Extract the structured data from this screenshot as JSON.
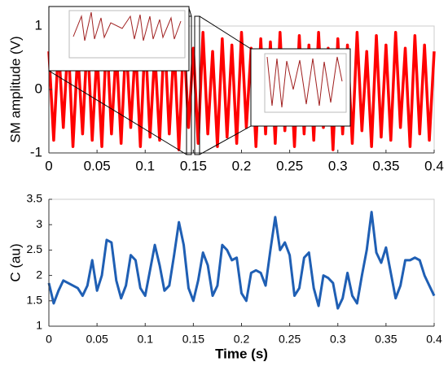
{
  "chart_data": [
    {
      "type": "line",
      "ylabel": "SM amplitude (V)",
      "color": "#ff0000",
      "x": [
        0,
        0.005,
        0.01,
        0.015,
        0.02,
        0.025,
        0.03,
        0.035,
        0.04,
        0.045,
        0.05,
        0.055,
        0.06,
        0.065,
        0.07,
        0.075,
        0.08,
        0.085,
        0.09,
        0.095,
        0.1,
        0.105,
        0.11,
        0.115,
        0.12,
        0.125,
        0.13,
        0.135,
        0.14,
        0.145,
        0.15,
        0.155,
        0.16,
        0.165,
        0.17,
        0.175,
        0.18,
        0.185,
        0.19,
        0.195,
        0.2,
        0.205,
        0.21,
        0.215,
        0.22,
        0.225,
        0.23,
        0.235,
        0.24,
        0.245,
        0.25,
        0.255,
        0.26,
        0.265,
        0.27,
        0.275,
        0.28,
        0.285,
        0.29,
        0.295,
        0.3,
        0.305,
        0.31,
        0.315,
        0.32,
        0.325,
        0.33,
        0.335,
        0.34,
        0.345,
        0.35,
        0.355,
        0.36,
        0.365,
        0.37,
        0.375,
        0.38,
        0.385,
        0.39,
        0.395,
        0.4
      ],
      "values": [
        0.6,
        -0.8,
        0.7,
        -0.6,
        0.8,
        -0.9,
        0.6,
        -0.7,
        0.85,
        -0.8,
        0.6,
        -0.9,
        0.9,
        -0.7,
        0.65,
        -0.85,
        0.8,
        -0.6,
        0.7,
        -0.9,
        0.85,
        -0.75,
        0.6,
        -0.8,
        0.9,
        -0.7,
        0.7,
        -0.95,
        0.85,
        -0.6,
        0.65,
        -0.85,
        0.9,
        -0.7,
        0.6,
        -0.9,
        0.8,
        -0.75,
        0.7,
        -0.85,
        0.9,
        -0.6,
        0.65,
        -0.9,
        0.8,
        -0.7,
        0.75,
        -0.85,
        0.9,
        -0.65,
        0.6,
        -0.9,
        0.85,
        -0.7,
        0.7,
        -0.8,
        0.9,
        -0.6,
        0.65,
        -0.95,
        0.8,
        -0.7,
        0.7,
        -0.85,
        0.9,
        -0.65,
        0.6,
        -0.9,
        0.85,
        -0.75,
        0.7,
        -0.8,
        0.9,
        -0.6,
        0.65,
        -0.9,
        0.85,
        -0.7,
        0.7,
        -0.8,
        0.6
      ],
      "xlim": [
        0,
        0.4
      ],
      "xticks": [
        0,
        0.05,
        0.1,
        0.15,
        0.2,
        0.25,
        0.3,
        0.35,
        0.4
      ],
      "ylim": [
        -1,
        1
      ],
      "yticks": [
        -1,
        0,
        1
      ]
    },
    {
      "type": "line",
      "xlabel": "Time (s)",
      "ylabel": "C (au)",
      "color": "#1f5fb4",
      "x": [
        0,
        0.005,
        0.01,
        0.015,
        0.02,
        0.025,
        0.03,
        0.035,
        0.04,
        0.045,
        0.05,
        0.055,
        0.06,
        0.065,
        0.07,
        0.075,
        0.08,
        0.085,
        0.09,
        0.095,
        0.1,
        0.105,
        0.11,
        0.115,
        0.12,
        0.125,
        0.13,
        0.135,
        0.14,
        0.145,
        0.15,
        0.155,
        0.16,
        0.165,
        0.17,
        0.175,
        0.18,
        0.185,
        0.19,
        0.195,
        0.2,
        0.205,
        0.21,
        0.215,
        0.22,
        0.225,
        0.23,
        0.235,
        0.24,
        0.245,
        0.25,
        0.255,
        0.26,
        0.265,
        0.27,
        0.275,
        0.28,
        0.285,
        0.29,
        0.295,
        0.3,
        0.305,
        0.31,
        0.315,
        0.32,
        0.325,
        0.33,
        0.335,
        0.34,
        0.345,
        0.35,
        0.355,
        0.36,
        0.365,
        0.37,
        0.375,
        0.38,
        0.385,
        0.39,
        0.395,
        0.4
      ],
      "values": [
        1.85,
        1.45,
        1.7,
        1.9,
        1.85,
        1.8,
        1.75,
        1.6,
        1.8,
        2.3,
        1.7,
        2.0,
        2.7,
        2.65,
        1.9,
        1.55,
        1.8,
        2.4,
        2.3,
        1.75,
        1.6,
        2.1,
        2.6,
        2.2,
        1.7,
        1.8,
        2.4,
        3.05,
        2.6,
        1.75,
        1.5,
        1.9,
        2.45,
        2.2,
        1.6,
        1.8,
        2.6,
        2.5,
        2.3,
        2.35,
        1.65,
        1.5,
        2.05,
        2.1,
        2.05,
        1.8,
        2.5,
        3.15,
        2.5,
        2.65,
        2.4,
        1.6,
        1.75,
        2.35,
        2.45,
        1.75,
        1.4,
        2.0,
        1.95,
        1.85,
        1.35,
        1.55,
        2.05,
        1.6,
        1.45,
        2.0,
        2.5,
        3.25,
        2.45,
        2.25,
        2.55,
        2.05,
        1.55,
        1.8,
        2.3,
        2.3,
        2.35,
        2.3,
        2.0,
        1.8,
        1.6
      ],
      "xlim": [
        0,
        0.4
      ],
      "xticks": [
        0,
        0.05,
        0.1,
        0.15,
        0.2,
        0.25,
        0.3,
        0.35,
        0.4
      ],
      "ylim": [
        1,
        3.5
      ],
      "yticks": [
        1,
        1.5,
        2,
        2.5,
        3,
        3.5
      ]
    }
  ]
}
